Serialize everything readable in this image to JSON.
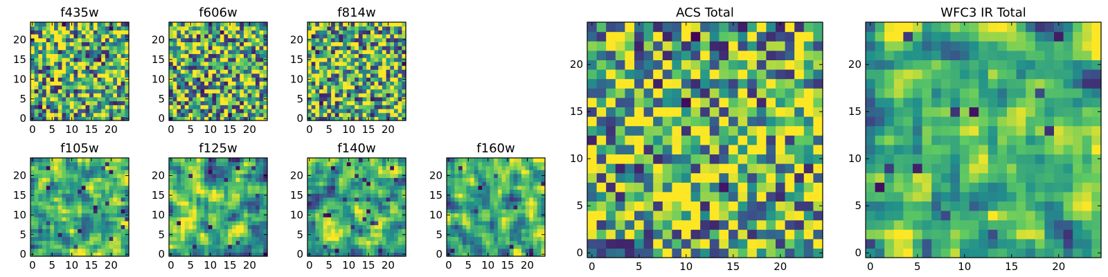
{
  "chart_data": [
    {
      "type": "heatmap",
      "title": "f435w",
      "grid": false,
      "xlim": [
        -0.5,
        24.5
      ],
      "ylim": [
        -0.5,
        24.5
      ],
      "xticks": [
        0,
        5,
        10,
        15,
        20
      ],
      "yticks": [
        0,
        5,
        10,
        15,
        20
      ],
      "value_range": [
        0,
        1
      ],
      "rows": 25,
      "cols": 25,
      "noise_seed": 11,
      "texture": "fine"
    },
    {
      "type": "heatmap",
      "title": "f606w",
      "grid": false,
      "xlim": [
        -0.5,
        24.5
      ],
      "ylim": [
        -0.5,
        24.5
      ],
      "xticks": [
        0,
        5,
        10,
        15,
        20
      ],
      "yticks": [
        0,
        5,
        10,
        15,
        20
      ],
      "value_range": [
        0,
        1
      ],
      "rows": 25,
      "cols": 25,
      "noise_seed": 23,
      "texture": "fine"
    },
    {
      "type": "heatmap",
      "title": "f814w",
      "grid": false,
      "xlim": [
        -0.5,
        24.5
      ],
      "ylim": [
        -0.5,
        24.5
      ],
      "xticks": [
        0,
        5,
        10,
        15,
        20
      ],
      "yticks": [
        0,
        5,
        10,
        15,
        20
      ],
      "value_range": [
        0,
        1
      ],
      "rows": 25,
      "cols": 25,
      "noise_seed": 37,
      "texture": "fine"
    },
    {
      "type": "heatmap",
      "title": "f105w",
      "grid": false,
      "xlim": [
        -0.5,
        24.5
      ],
      "ylim": [
        -0.5,
        24.5
      ],
      "xticks": [
        0,
        5,
        10,
        15,
        20
      ],
      "yticks": [
        0,
        5,
        10,
        15,
        20
      ],
      "value_range": [
        0,
        1
      ],
      "rows": 25,
      "cols": 25,
      "noise_seed": 41,
      "texture": "smooth"
    },
    {
      "type": "heatmap",
      "title": "f125w",
      "grid": false,
      "xlim": [
        -0.5,
        24.5
      ],
      "ylim": [
        -0.5,
        24.5
      ],
      "xticks": [
        0,
        5,
        10,
        15,
        20
      ],
      "yticks": [
        0,
        5,
        10,
        15,
        20
      ],
      "value_range": [
        0,
        1
      ],
      "rows": 25,
      "cols": 25,
      "noise_seed": 53,
      "texture": "smooth"
    },
    {
      "type": "heatmap",
      "title": "f140w",
      "grid": false,
      "xlim": [
        -0.5,
        24.5
      ],
      "ylim": [
        -0.5,
        24.5
      ],
      "xticks": [
        0,
        5,
        10,
        15,
        20
      ],
      "yticks": [
        0,
        5,
        10,
        15,
        20
      ],
      "value_range": [
        0,
        1
      ],
      "rows": 25,
      "cols": 25,
      "noise_seed": 67,
      "texture": "smooth"
    },
    {
      "type": "heatmap",
      "title": "f160w",
      "grid": false,
      "xlim": [
        -0.5,
        24.5
      ],
      "ylim": [
        -0.5,
        24.5
      ],
      "xticks": [
        0,
        5,
        10,
        15,
        20
      ],
      "yticks": [
        0,
        5,
        10,
        15,
        20
      ],
      "value_range": [
        0,
        1
      ],
      "rows": 25,
      "cols": 25,
      "noise_seed": 79,
      "texture": "smooth"
    },
    {
      "type": "heatmap",
      "title": "ACS Total",
      "grid": false,
      "xlim": [
        -0.5,
        24.5
      ],
      "ylim": [
        -0.5,
        24.5
      ],
      "xticks": [
        0,
        5,
        10,
        15,
        20
      ],
      "yticks": [
        0,
        5,
        10,
        15,
        20
      ],
      "value_range": [
        0,
        1
      ],
      "rows": 25,
      "cols": 25,
      "noise_seed": 97,
      "texture": "fine"
    },
    {
      "type": "heatmap",
      "title": "WFC3 IR Total",
      "grid": false,
      "xlim": [
        -0.5,
        24.5
      ],
      "ylim": [
        -0.5,
        24.5
      ],
      "xticks": [
        0,
        5,
        10,
        15,
        20
      ],
      "yticks": [
        0,
        5,
        10,
        15,
        20
      ],
      "value_range": [
        0,
        1
      ],
      "rows": 25,
      "cols": 25,
      "noise_seed": 113,
      "texture": "smooth"
    }
  ],
  "colormap": [
    "#440154",
    "#3b528b",
    "#21918c",
    "#5ec962",
    "#fde725"
  ]
}
